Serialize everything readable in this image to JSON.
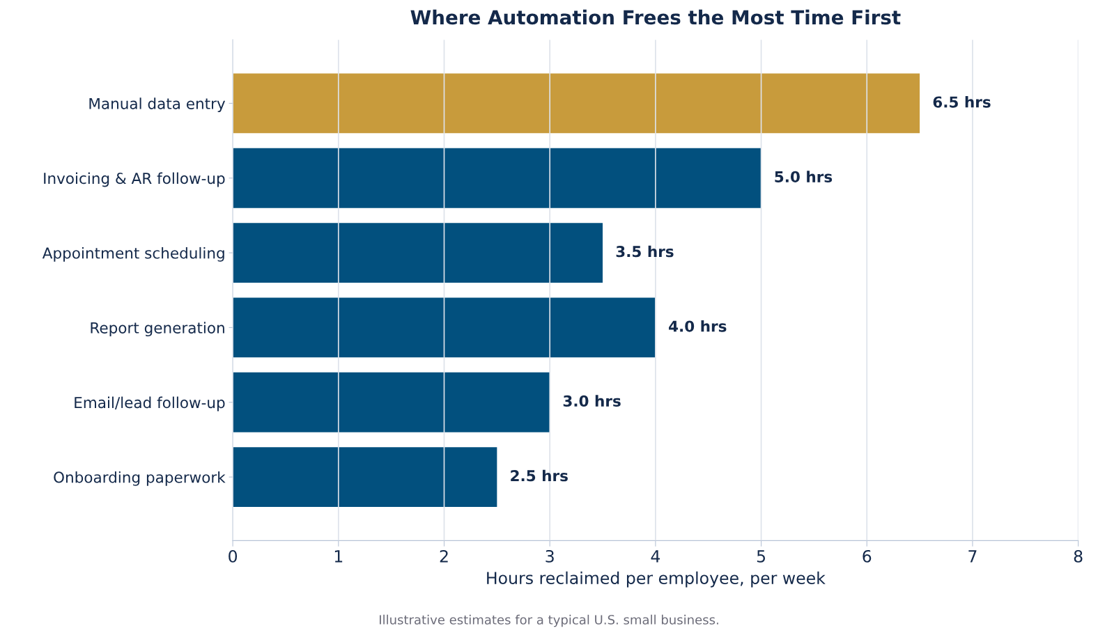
{
  "chart_data": {
    "type": "bar",
    "orientation": "horizontal",
    "title": "Where Automation Frees the Most Time First",
    "xlabel": "Hours reclaimed per employee, per week",
    "categories": [
      "Manual data entry",
      "Invoicing & AR follow-up",
      "Appointment scheduling",
      "Report generation",
      "Email/lead follow-up",
      "Onboarding paperwork"
    ],
    "values": [
      6.5,
      5.0,
      3.5,
      4.0,
      3.0,
      2.5
    ],
    "colors": [
      "#c89b3c",
      "#02507e",
      "#02507e",
      "#02507e",
      "#02507e",
      "#02507e"
    ],
    "value_labels": [
      "6.5 hrs",
      "5.0 hrs",
      "3.5 hrs",
      "4.0 hrs",
      "3.0 hrs",
      "2.5 hrs"
    ],
    "xlim": [
      0,
      8
    ],
    "xticks": [
      0,
      1,
      2,
      3,
      4,
      5,
      6,
      7,
      8
    ],
    "grid": "x",
    "legend": false,
    "annotations": [
      "Illustrative estimates for a typical U.S. small business."
    ]
  }
}
